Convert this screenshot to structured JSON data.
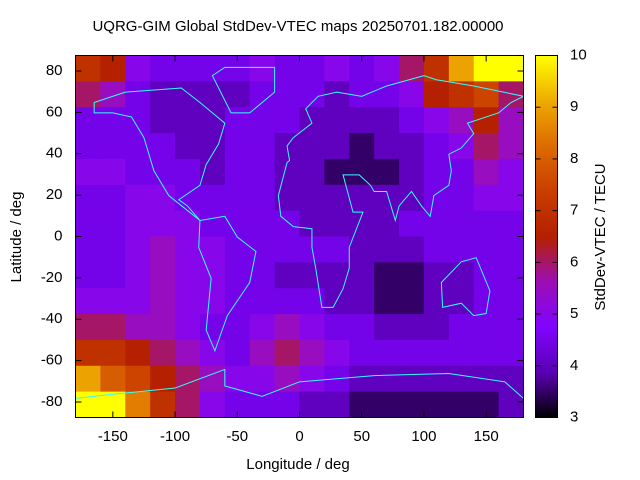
{
  "chart_data": {
    "type": "heatmap",
    "title": "UQRG-GIM Global StdDev-VTEC maps 20250701.182.00000",
    "xlabel": "Longitude / deg",
    "ylabel": "Latitude / deg",
    "colorbar_label": "StdDev-VTEC / TECU",
    "x": [
      -170,
      -150,
      -130,
      -110,
      -90,
      -70,
      -50,
      -30,
      -10,
      10,
      30,
      50,
      70,
      90,
      110,
      130,
      150,
      170
    ],
    "y": [
      81.25,
      68.75,
      56.25,
      43.75,
      31.25,
      18.75,
      6.25,
      -6.25,
      -18.75,
      -31.25,
      -43.75,
      -56.25,
      -68.75,
      -81.25
    ],
    "z": [
      [
        7,
        6.5,
        5,
        4.5,
        4.5,
        4.5,
        4.5,
        5,
        4.5,
        4.5,
        5,
        4.5,
        5,
        6,
        7,
        9,
        10,
        10
      ],
      [
        6,
        5.5,
        4.5,
        4,
        4,
        4,
        4,
        4.5,
        4.5,
        4.5,
        4,
        4.5,
        4.5,
        5,
        6.5,
        7,
        7.5,
        6
      ],
      [
        4.5,
        4.5,
        4.5,
        4,
        4,
        4,
        4.5,
        4.5,
        4.5,
        4,
        4,
        4,
        4,
        4.5,
        5,
        5.5,
        6.5,
        5.5
      ],
      [
        4.5,
        4.5,
        4.5,
        4.5,
        4,
        4,
        4.5,
        4.5,
        4,
        4,
        4,
        3.5,
        4,
        4,
        4.5,
        5,
        6,
        5.5
      ],
      [
        5,
        5,
        4.5,
        4.5,
        4.5,
        4,
        4.5,
        4.5,
        4,
        4,
        3.5,
        3.5,
        3.5,
        4,
        4.5,
        4.5,
        5.5,
        5
      ],
      [
        4.5,
        4.5,
        5,
        5,
        4.5,
        4.5,
        4.5,
        4.5,
        4,
        4,
        4,
        4,
        4,
        4,
        4.5,
        4.5,
        5,
        5
      ],
      [
        4.5,
        4.5,
        5,
        5,
        5,
        4.5,
        4.5,
        4.5,
        4.5,
        4,
        4,
        4,
        4,
        4.5,
        4.5,
        4.5,
        4.5,
        4.5
      ],
      [
        4.5,
        4.5,
        5,
        5.5,
        5,
        5,
        4.5,
        4.5,
        4.5,
        4.5,
        4.5,
        4,
        4,
        4,
        4.5,
        4.5,
        4.5,
        4.5
      ],
      [
        4.5,
        4.5,
        5,
        5.5,
        5,
        5,
        4.5,
        4.5,
        4,
        4,
        4,
        4,
        3.5,
        3.5,
        4,
        4,
        4.5,
        4.5
      ],
      [
        5,
        5,
        5,
        5.5,
        5,
        5,
        4.5,
        4.5,
        4.5,
        4.5,
        4,
        4,
        3.5,
        3.5,
        4,
        4,
        4.5,
        4.5
      ],
      [
        6,
        6,
        5.5,
        5.5,
        5,
        4.5,
        4.5,
        5,
        5.5,
        5,
        4.5,
        4.5,
        4,
        4,
        4,
        4.5,
        4.5,
        4.5
      ],
      [
        7,
        7,
        6.5,
        6,
        5.5,
        5,
        4.5,
        5.5,
        6,
        5.5,
        5,
        4.5,
        4.5,
        4.5,
        4.5,
        4.5,
        4.5,
        4.5
      ],
      [
        9,
        8,
        7.5,
        6.5,
        6,
        5.5,
        5,
        5,
        5.5,
        5,
        4.5,
        4,
        4,
        4,
        4,
        4,
        4,
        4
      ],
      [
        10,
        10,
        8.5,
        7,
        6,
        5,
        4.5,
        4.5,
        4.5,
        4,
        4,
        3.5,
        3.5,
        3.5,
        3.5,
        3.5,
        3.5,
        4
      ]
    ],
    "xlim": [
      -180,
      180
    ],
    "ylim": [
      -87.5,
      87.5
    ],
    "xticks": [
      -150,
      -100,
      -50,
      0,
      50,
      100,
      150
    ],
    "yticks": [
      -80,
      -60,
      -40,
      -20,
      0,
      20,
      40,
      60,
      80
    ],
    "clim": [
      3,
      10
    ],
    "cticks": [
      3,
      4,
      5,
      6,
      7,
      8,
      9,
      10
    ],
    "colormap": [
      "#000000",
      "#5a00b4",
      "#8004ff",
      "#9c0eb4",
      "#b42000",
      "#c93e00",
      "#dd6b00",
      "#eeab00",
      "#ffff00"
    ]
  }
}
